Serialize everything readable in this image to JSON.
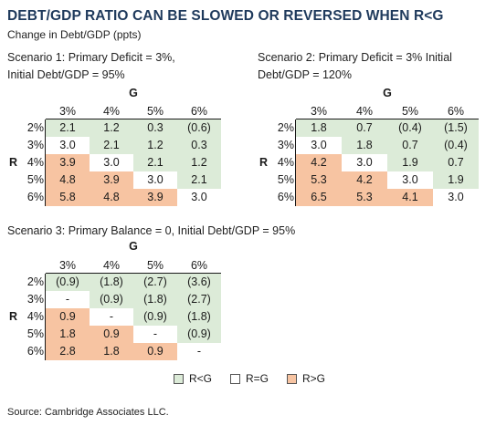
{
  "title": "DEBT/GDP RATIO CAN BE SLOWED OR REVERSED WHEN R<G",
  "subtitle": "Change in Debt/GDP (ppts)",
  "source": "Source: Cambridge Associates LLC.",
  "colors": {
    "r_lt_g": "#dcebd8",
    "r_eq_g": "#ffffff",
    "r_gt_g": "#f7c4a2"
  },
  "legend": [
    {
      "label": "R<G",
      "key": "r_lt_g"
    },
    {
      "label": "R=G",
      "key": "r_eq_g"
    },
    {
      "label": "R>G",
      "key": "r_gt_g"
    }
  ],
  "chart_data": [
    {
      "type": "table",
      "title_line1": "Scenario 1:  Primary Deficit = 3%,",
      "title_line2": "Initial Debt/GDP = 95%",
      "col_axis_label": "G",
      "row_axis_label": "R",
      "columns": [
        "3%",
        "4%",
        "5%",
        "6%"
      ],
      "rows": [
        "2%",
        "3%",
        "4%",
        "5%",
        "6%"
      ],
      "values": [
        [
          "2.1",
          "1.2",
          "0.3",
          "(0.6)"
        ],
        [
          "3.0",
          "2.1",
          "1.2",
          "0.3"
        ],
        [
          "3.9",
          "3.0",
          "2.1",
          "1.2"
        ],
        [
          "4.8",
          "3.9",
          "3.0",
          "2.1"
        ],
        [
          "5.8",
          "4.8",
          "3.9",
          "3.0"
        ]
      ]
    },
    {
      "type": "table",
      "title_line1": "Scenario 2:  Primary Deficit = 3% Initial",
      "title_line2": "Debt/GDP = 120%",
      "col_axis_label": "G",
      "row_axis_label": "R",
      "columns": [
        "3%",
        "4%",
        "5%",
        "6%"
      ],
      "rows": [
        "2%",
        "3%",
        "4%",
        "5%",
        "6%"
      ],
      "values": [
        [
          "1.8",
          "0.7",
          "(0.4)",
          "(1.5)"
        ],
        [
          "3.0",
          "1.8",
          "0.7",
          "(0.4)"
        ],
        [
          "4.2",
          "3.0",
          "1.9",
          "0.7"
        ],
        [
          "5.3",
          "4.2",
          "3.0",
          "1.9"
        ],
        [
          "6.5",
          "5.3",
          "4.1",
          "3.0"
        ]
      ]
    },
    {
      "type": "table",
      "title_line1": "Scenario 3:  Primary Balance = 0, Initial Debt/GDP = 95%",
      "title_line2": "",
      "col_axis_label": "G",
      "row_axis_label": "R",
      "columns": [
        "3%",
        "4%",
        "5%",
        "6%"
      ],
      "rows": [
        "2%",
        "3%",
        "4%",
        "5%",
        "6%"
      ],
      "values": [
        [
          "(0.9)",
          "(1.8)",
          "(2.7)",
          "(3.6)"
        ],
        [
          "-",
          "(0.9)",
          "(1.8)",
          "(2.7)"
        ],
        [
          "0.9",
          "-",
          "(0.9)",
          "(1.8)"
        ],
        [
          "1.8",
          "0.9",
          "-",
          "(0.9)"
        ],
        [
          "2.8",
          "1.8",
          "0.9",
          "-"
        ]
      ]
    }
  ]
}
